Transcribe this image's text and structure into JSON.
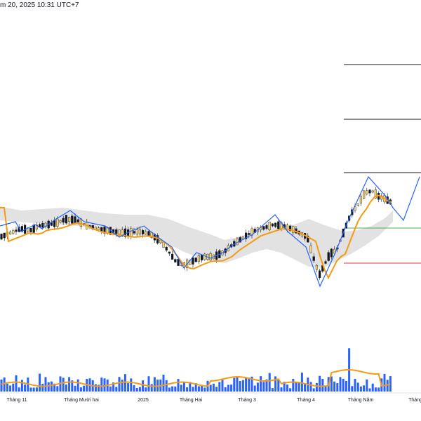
{
  "header": {
    "timestamp_text": "m 20, 2025 10:31 UTC+7"
  },
  "x_axis": {
    "labels": [
      "Tháng 11",
      "Tháng Mười hai",
      "2025",
      "Tháng Hai",
      "Tháng 3",
      "Tháng 4",
      "Tháng Năm",
      "Tháng"
    ]
  },
  "colors": {
    "up_candle": "#f7d774",
    "down_candle": "#131722",
    "ema_line": "#f39c12",
    "zigzag": "#2962ff",
    "volume_bar": "#2962ff",
    "volume_ma": "#f39c12",
    "cloud": "#d6d6d6",
    "target_line_green": "#4caf50",
    "stop_line_red": "#e53935",
    "level_line": "#131722"
  },
  "chart_data": {
    "type": "candlestick",
    "title": "",
    "xlabel": "",
    "ylabel": "",
    "x_tick_labels": [
      "Tháng 11",
      "Tháng Mười hai",
      "2025",
      "Tháng Hai",
      "Tháng 3",
      "Tháng 4",
      "Tháng Năm",
      "Tháng"
    ],
    "price_path": [
      {
        "period": "Tháng 11",
        "approx_close": 42
      },
      {
        "period": "Tháng Mười hai",
        "approx_close": 46
      },
      {
        "period": "2025",
        "approx_close": 42
      },
      {
        "period": "Tháng Hai",
        "approx_close": 30
      },
      {
        "period": "Tháng 3",
        "approx_close": 48
      },
      {
        "period": "Tháng 4",
        "approx_close": 20
      },
      {
        "period": "Tháng Năm",
        "approx_close": 62
      }
    ],
    "levels": [
      {
        "kind": "target",
        "color": "#131722"
      },
      {
        "kind": "target",
        "color": "#131722"
      },
      {
        "kind": "resistance",
        "color": "#131722"
      },
      {
        "kind": "take-profit",
        "color": "#4caf50"
      },
      {
        "kind": "stop-loss",
        "color": "#e53935"
      }
    ],
    "grid": false,
    "legend": "none"
  }
}
